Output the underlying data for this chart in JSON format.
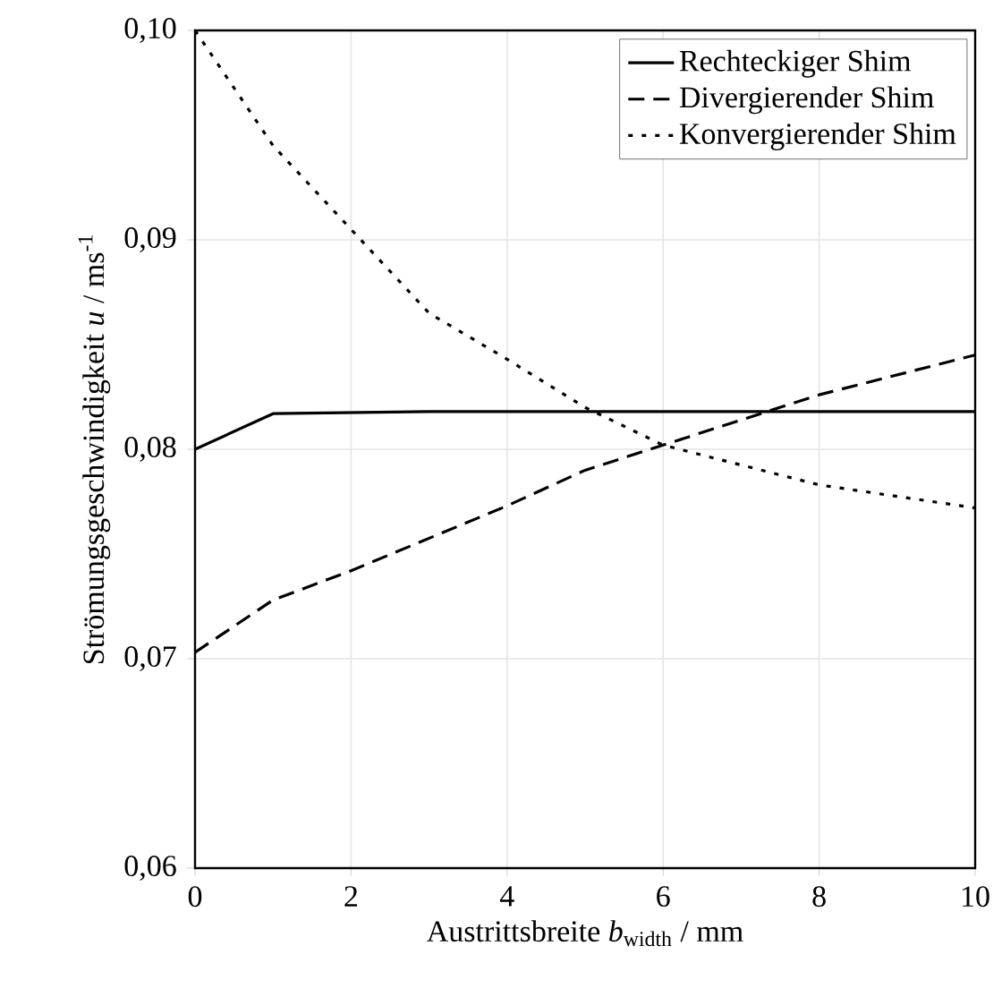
{
  "chart_data": {
    "type": "line",
    "xlabel": "Austrittsbreite *b*$_{width}$ / mm",
    "ylabel": "Strömungsgeschwindigkeit *u* / ms$^{-1}$",
    "xlim": [
      0,
      10
    ],
    "ylim": [
      0.06,
      0.1
    ],
    "xticks": [
      0,
      2,
      4,
      6,
      8,
      10
    ],
    "yticks": [
      {
        "value": 0.06,
        "label": "0,06"
      },
      {
        "value": 0.07,
        "label": "0,07"
      },
      {
        "value": 0.08,
        "label": "0,08"
      },
      {
        "value": 0.09,
        "label": "0,09"
      },
      {
        "value": 0.1,
        "label": "0,10"
      }
    ],
    "grid": true,
    "legend": "top right",
    "marker": "none",
    "series": [
      {
        "name": "Rechteckiger Shim",
        "color": "#000000",
        "line_style": "solid",
        "x": [
          0,
          1,
          3,
          10
        ],
        "values": [
          0.08,
          0.0817,
          0.0818,
          0.0818
        ]
      },
      {
        "name": "Divergierender Shim",
        "color": "#000000",
        "line_style": "dashed",
        "x": [
          0,
          1,
          2,
          4,
          5,
          6,
          8,
          10
        ],
        "values": [
          0.0703,
          0.0728,
          0.0742,
          0.0773,
          0.079,
          0.0802,
          0.0826,
          0.0845
        ]
      },
      {
        "name": "Konvergierender Shim",
        "color": "#000000",
        "line_style": "dotted",
        "x": [
          0,
          1,
          2,
          3,
          4,
          5,
          6,
          8,
          10
        ],
        "values": [
          0.1,
          0.0945,
          0.0905,
          0.0865,
          0.0843,
          0.082,
          0.0802,
          0.0783,
          0.0772
        ]
      }
    ]
  }
}
